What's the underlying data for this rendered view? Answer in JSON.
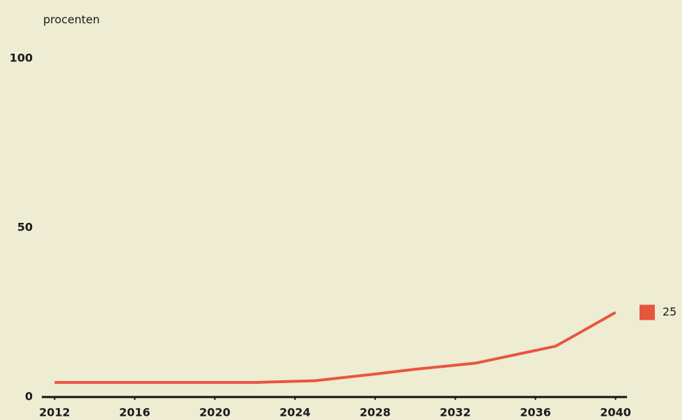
{
  "chart_data": {
    "type": "line",
    "y_label": "procenten",
    "x": [
      2012,
      2022,
      2025,
      2028,
      2030,
      2033,
      2035,
      2037,
      2038,
      2040
    ],
    "series": [
      {
        "color": "#e8553f",
        "values": [
          4.3,
          4.3,
          4.8,
          6.8,
          8.2,
          10,
          12.5,
          15,
          18.3,
          25
        ]
      }
    ],
    "xlim": [
      2011.5,
      2040.5
    ],
    "xticks": [
      2012,
      2016,
      2020,
      2024,
      2028,
      2032,
      2036,
      2040
    ],
    "ylim": [
      0,
      100
    ],
    "yticks": [
      0,
      50,
      100
    ],
    "grid": false
  }
}
